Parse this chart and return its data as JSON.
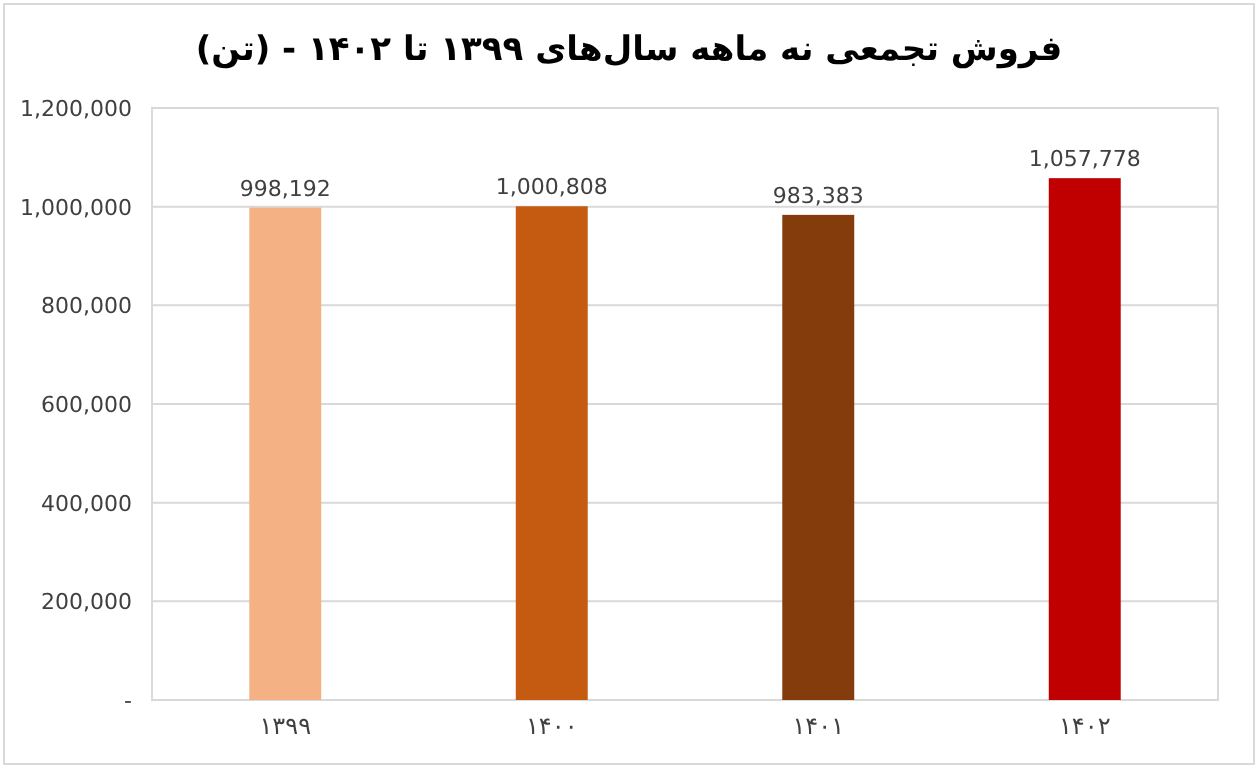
{
  "chart_data": {
    "type": "bar",
    "title": "فروش تجمعی نه ماهه سال‌های ۱۳۹۹ تا ۱۴۰۲ - (تن)",
    "categories": [
      "۱۳۹۹",
      "۱۴۰۰",
      "۱۴۰۱",
      "۱۴۰۲"
    ],
    "values": [
      998192,
      1000808,
      983383,
      1057778
    ],
    "colors": [
      "#f4b183",
      "#c55a11",
      "#843c0c",
      "#c00000"
    ],
    "value_labels": [
      "998,192",
      "1,000,808",
      "983,383",
      "1,057,778"
    ],
    "ylim": [
      0,
      1200000
    ],
    "yticks": [
      {
        "value": 0,
        "label": "-"
      },
      {
        "value": 200000,
        "label": "200,000"
      },
      {
        "value": 400000,
        "label": "400,000"
      },
      {
        "value": 600000,
        "label": "600,000"
      },
      {
        "value": 800000,
        "label": "800,000"
      },
      {
        "value": 1000000,
        "label": "1,000,000"
      },
      {
        "value": 1200000,
        "label": "1,200,000"
      }
    ],
    "grid": "y"
  }
}
